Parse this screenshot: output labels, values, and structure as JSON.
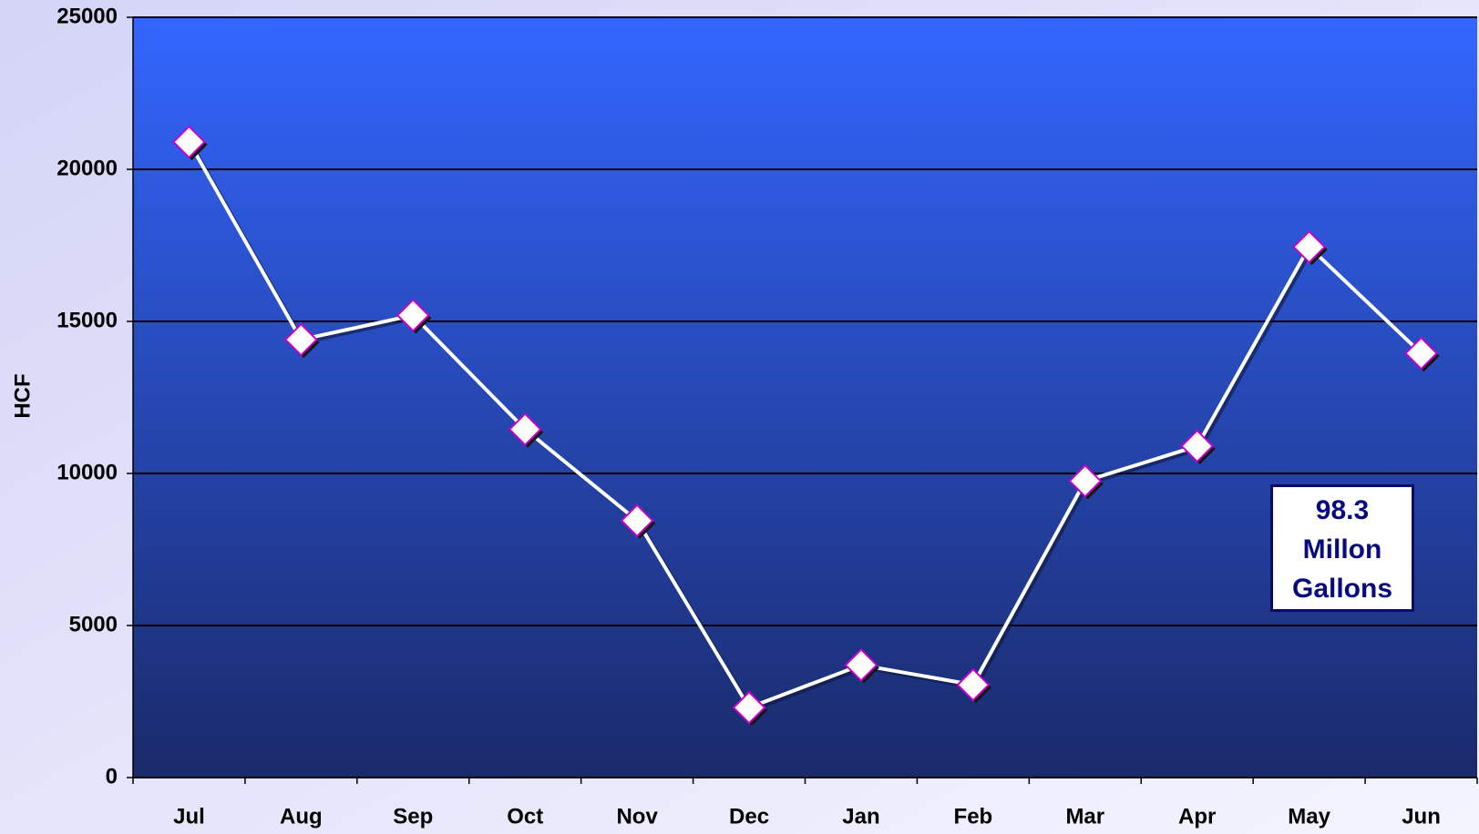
{
  "chart_data": {
    "type": "line",
    "y_label": "HCF",
    "categories": [
      "Jul",
      "Aug",
      "Sep",
      "Oct",
      "Nov",
      "Dec",
      "Jan",
      "Feb",
      "Mar",
      "Apr",
      "May",
      "Jun"
    ],
    "series": [
      {
        "name": "HCF",
        "color": "#ffffff",
        "values": [
          20900,
          14400,
          15200,
          11450,
          8450,
          2300,
          3700,
          3050,
          9750,
          10900,
          17450,
          13950
        ]
      }
    ],
    "ylim": [
      0,
      25000
    ],
    "yticks": [
      0,
      5000,
      10000,
      15000,
      20000,
      25000
    ],
    "grid": true,
    "annotation": "98.3 Millon Gallons"
  }
}
